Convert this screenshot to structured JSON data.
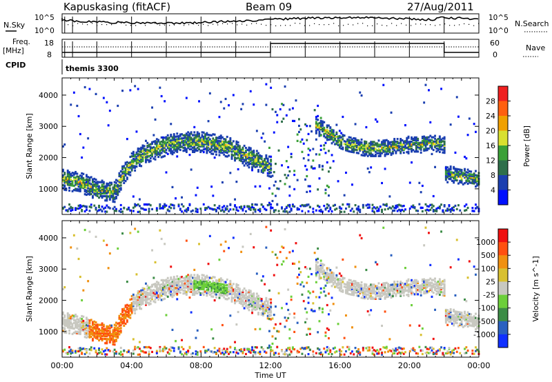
{
  "header": {
    "station": "Kapuskasing (fitACF)",
    "beam": "Beam 09",
    "date": "27/Aug/2011"
  },
  "top_panels": {
    "nsky_label": "N.Sky",
    "nsky_ticks": [
      "10^5",
      "10^0"
    ],
    "nsearch_label": "N.Search",
    "freq_label": "Freq.",
    "freq_unit": "[MHz]",
    "freq_ticks": [
      "18",
      "8"
    ],
    "nave_label": "Nave",
    "nave_ticks": [
      "60",
      "0"
    ],
    "cpid_label": "CPID",
    "cpid_value": "themis 3300"
  },
  "x_axis": {
    "label": "Time UT",
    "ticks": [
      "00:00",
      "04:00",
      "08:00",
      "12:00",
      "16:00",
      "20:00",
      "00:00"
    ]
  },
  "chart_data": [
    {
      "type": "heatmap",
      "panel": "power",
      "ylabel": "Slant Range [km]",
      "ylim": [
        180,
        4550
      ],
      "yticks": [
        1000,
        2000,
        3000,
        4000
      ],
      "xlim_hours": [
        0,
        24
      ],
      "colorbar": {
        "label": "Power [dB]",
        "ticks": [
          "28",
          "24",
          "20",
          "16",
          "12",
          "8",
          "4"
        ],
        "colors": [
          "#0010ff",
          "#1b3fb0",
          "#2e6f4a",
          "#3aa037",
          "#d8e030",
          "#f0a000",
          "#ff6010",
          "#f02020"
        ]
      },
      "series": [
        {
          "x": [
            0.0,
            0.5,
            1.0,
            1.5,
            2.0,
            2.5,
            3.0,
            3.5,
            4.0,
            4.5,
            5.0,
            5.5,
            6.0,
            6.5,
            7.0,
            7.5,
            8.0,
            8.5,
            9.0,
            9.5,
            10.0,
            10.5,
            11.0,
            11.5,
            12.0
          ],
          "y": [
            1300,
            1250,
            1200,
            1100,
            950,
            950,
            900,
            1500,
            1850,
            2050,
            2200,
            2300,
            2400,
            2450,
            2500,
            2500,
            2500,
            2450,
            2400,
            2350,
            2200,
            2050,
            1950,
            1800,
            1700
          ]
        },
        {
          "x": [
            14.5,
            15.0,
            15.5,
            16.0,
            16.5,
            17.0,
            17.5,
            18.0,
            18.5,
            19.0,
            19.5,
            20.0,
            20.5,
            21.0,
            21.5,
            22.0
          ],
          "y": [
            3000,
            2900,
            2700,
            2500,
            2400,
            2350,
            2300,
            2300,
            2300,
            2350,
            2350,
            2400,
            2400,
            2450,
            2450,
            2400
          ]
        },
        {
          "x": [
            22.0,
            22.5,
            23.0,
            23.5,
            24.0
          ],
          "y": [
            1500,
            1450,
            1400,
            1350,
            1300
          ]
        }
      ]
    },
    {
      "type": "heatmap",
      "panel": "velocity",
      "ylabel": "Slant Range [km]",
      "ylim": [
        180,
        4550
      ],
      "yticks": [
        1000,
        2000,
        3000,
        4000
      ],
      "xlim_hours": [
        0,
        24
      ],
      "colorbar": {
        "label": "Velocity [m s^-1]",
        "ticks": [
          "1000",
          "500",
          "100",
          "25",
          "-25",
          "-100",
          "-500",
          "-1000"
        ],
        "colors": [
          "#1030ff",
          "#2a60c0",
          "#3c8c46",
          "#6ccf3a",
          "#c8c8c0",
          "#d8c030",
          "#f09010",
          "#ff5010",
          "#f01010"
        ]
      }
    }
  ]
}
